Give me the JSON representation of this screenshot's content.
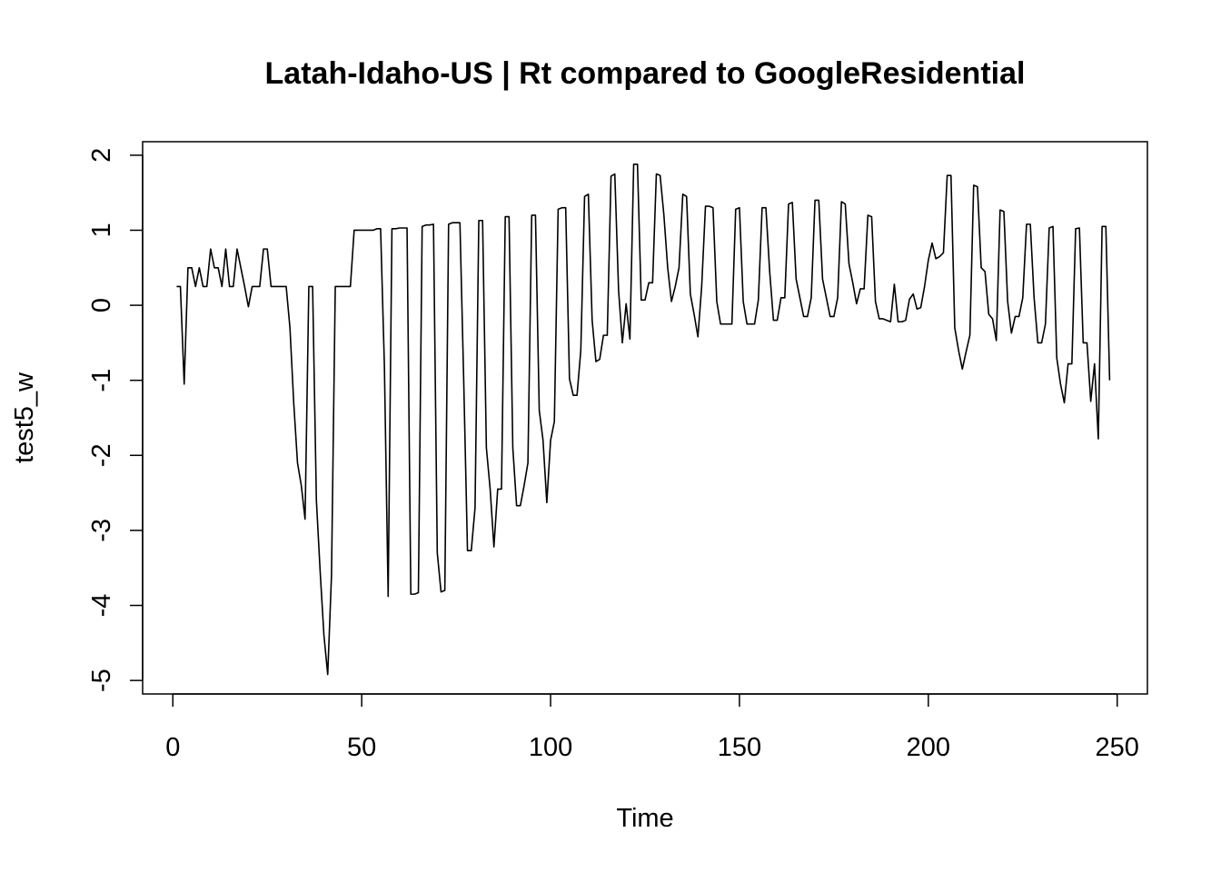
{
  "chart_data": {
    "type": "line",
    "title": "Latah-Idaho-US | Rt compared to GoogleResidential",
    "xlabel": "Time",
    "ylabel": "test5_w",
    "xlim": [
      -8,
      258
    ],
    "ylim": [
      -5.18,
      2.18
    ],
    "xticks": [
      0,
      50,
      100,
      150,
      200,
      250
    ],
    "yticks": [
      -5,
      -4,
      -3,
      -2,
      -1,
      0,
      1,
      2
    ],
    "grid": false,
    "legend": "none",
    "line_color": "#000000",
    "series": [
      {
        "x": [
          1,
          2,
          3,
          4,
          5,
          6,
          7,
          8,
          9,
          10,
          11,
          12,
          13,
          14,
          15,
          16,
          17,
          18,
          19,
          20,
          21,
          22,
          23,
          24,
          25,
          26,
          27,
          28,
          29,
          30,
          31,
          32,
          33,
          34,
          35,
          36,
          37,
          38,
          39,
          40,
          41,
          42,
          43,
          44,
          45,
          46,
          47,
          48,
          49,
          50,
          51,
          52,
          53,
          54,
          55,
          56,
          57,
          58,
          59,
          60,
          61,
          62,
          63,
          64,
          65,
          66,
          67,
          68,
          69,
          70,
          71,
          72,
          73,
          74,
          75,
          76,
          77,
          78,
          79,
          80,
          81,
          82,
          83,
          84,
          85,
          86,
          87,
          88,
          89,
          90,
          91,
          92,
          93,
          94,
          95,
          96,
          97,
          98,
          99,
          100,
          101,
          102,
          103,
          104,
          105,
          106,
          107,
          108,
          109,
          110,
          111,
          112,
          113,
          114,
          115,
          116,
          117,
          118,
          119,
          120,
          121,
          122,
          123,
          124,
          125,
          126,
          127,
          128,
          129,
          130,
          131,
          132,
          133,
          134,
          135,
          136,
          137,
          138,
          139,
          140,
          141,
          142,
          143,
          144,
          145,
          146,
          147,
          148,
          149,
          150,
          151,
          152,
          153,
          154,
          155,
          156,
          157,
          158,
          159,
          160,
          161,
          162,
          163,
          164,
          165,
          166,
          167,
          168,
          169,
          170,
          171,
          172,
          173,
          174,
          175,
          176,
          177,
          178,
          179,
          180,
          181,
          182,
          183,
          184,
          185,
          186,
          187,
          188,
          189,
          190,
          191,
          192,
          193,
          194,
          195,
          196,
          197,
          198,
          199,
          200,
          201,
          202,
          203,
          204,
          205,
          206,
          207,
          208,
          209,
          210,
          211,
          212,
          213,
          214,
          215,
          216,
          217,
          218,
          219,
          220,
          221,
          222,
          223,
          224,
          225,
          226,
          227,
          228,
          229,
          230,
          231,
          232,
          233,
          234,
          235,
          236,
          237,
          238,
          239,
          240,
          241,
          242,
          243,
          244,
          245,
          246,
          247,
          248
        ],
        "values": [
          0.25,
          0.25,
          -1.05,
          0.5,
          0.5,
          0.25,
          0.5,
          0.25,
          0.25,
          0.75,
          0.5,
          0.5,
          0.25,
          0.75,
          0.25,
          0.25,
          0.75,
          0.5,
          0.25,
          -0.02,
          0.25,
          0.25,
          0.25,
          0.75,
          0.75,
          0.25,
          0.25,
          0.25,
          0.25,
          0.25,
          -0.3,
          -1.3,
          -2.1,
          -2.4,
          -2.85,
          0.25,
          0.25,
          -2.6,
          -3.55,
          -4.4,
          -4.92,
          -3.6,
          0.25,
          0.25,
          0.25,
          0.25,
          0.25,
          1.0,
          1.0,
          1.0,
          1.0,
          1.0,
          1.0,
          1.02,
          1.02,
          -0.8,
          -3.88,
          1.02,
          1.02,
          1.03,
          1.03,
          1.03,
          -3.85,
          -3.85,
          -3.83,
          1.05,
          1.07,
          1.07,
          1.08,
          -3.3,
          -3.82,
          -3.8,
          1.08,
          1.1,
          1.1,
          1.1,
          -1.0,
          -3.27,
          -3.27,
          -2.7,
          1.13,
          1.13,
          -1.9,
          -2.45,
          -3.22,
          -2.45,
          -2.45,
          1.18,
          1.18,
          -1.9,
          -2.67,
          -2.67,
          -2.4,
          -2.1,
          1.2,
          1.2,
          -1.4,
          -1.8,
          -2.63,
          -1.8,
          -1.55,
          1.28,
          1.3,
          1.3,
          -0.98,
          -1.2,
          -1.2,
          -0.6,
          1.45,
          1.48,
          -0.2,
          -0.75,
          -0.72,
          -0.4,
          -0.4,
          1.72,
          1.75,
          0.2,
          -0.5,
          0.02,
          -0.45,
          1.88,
          1.88,
          0.07,
          0.07,
          0.3,
          0.3,
          1.75,
          1.73,
          1.2,
          0.5,
          0.05,
          0.25,
          0.5,
          1.48,
          1.45,
          0.15,
          -0.12,
          -0.42,
          0.25,
          1.32,
          1.32,
          1.3,
          0.05,
          -0.25,
          -0.25,
          -0.25,
          -0.25,
          1.28,
          1.3,
          0.05,
          -0.25,
          -0.25,
          -0.25,
          0.07,
          1.3,
          1.3,
          0.45,
          -0.2,
          -0.2,
          0.1,
          0.1,
          1.35,
          1.37,
          0.35,
          0.1,
          -0.15,
          -0.15,
          0.1,
          1.4,
          1.4,
          0.35,
          0.1,
          -0.15,
          -0.15,
          0.1,
          1.38,
          1.35,
          0.55,
          0.3,
          0.02,
          0.22,
          0.22,
          1.2,
          1.18,
          0.05,
          -0.18,
          -0.18,
          -0.2,
          -0.22,
          0.28,
          -0.22,
          -0.22,
          -0.2,
          0.08,
          0.15,
          -0.05,
          -0.03,
          0.25,
          0.6,
          0.83,
          0.62,
          0.65,
          0.7,
          1.73,
          1.73,
          -0.3,
          -0.6,
          -0.85,
          -0.62,
          -0.4,
          1.6,
          1.58,
          0.5,
          0.45,
          -0.12,
          -0.18,
          -0.47,
          1.27,
          1.25,
          0.05,
          -0.37,
          -0.15,
          -0.15,
          0.1,
          1.08,
          1.08,
          0.1,
          -0.5,
          -0.5,
          -0.25,
          1.03,
          1.05,
          -0.7,
          -1.05,
          -1.3,
          -0.78,
          -0.78,
          1.02,
          1.03,
          -0.5,
          -0.5,
          -1.28,
          -0.78,
          -1.78,
          1.05,
          1.05,
          -1.0
        ]
      }
    ]
  }
}
